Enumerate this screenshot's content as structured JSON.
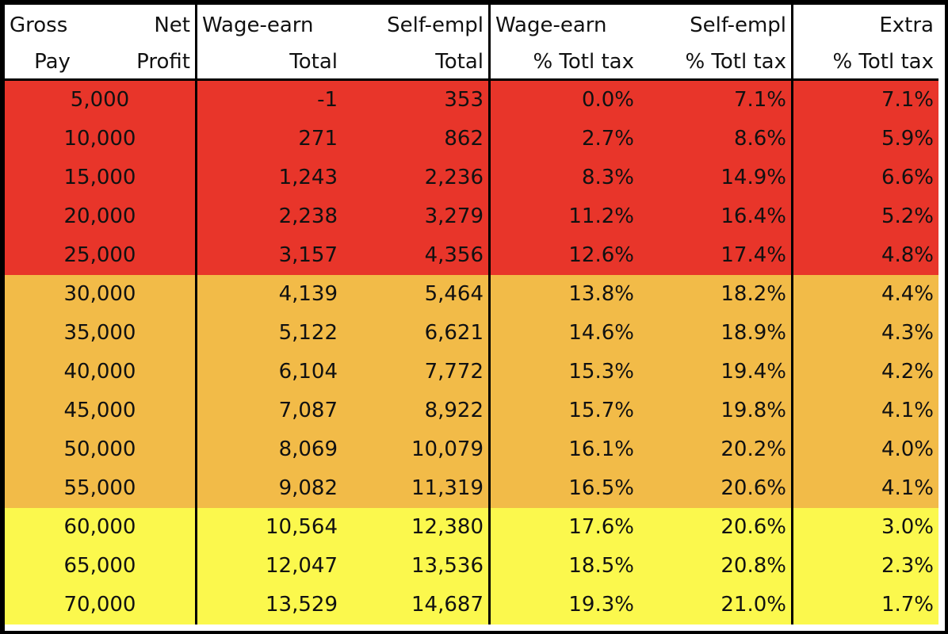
{
  "header": {
    "col1": [
      "Gross",
      "Pay"
    ],
    "col2": [
      "Net",
      "Profit"
    ],
    "col3": [
      "Wage-earn",
      "Total"
    ],
    "col4": [
      "Self-empl",
      "Total"
    ],
    "col5": [
      "Wage-earn",
      "% Totl tax"
    ],
    "col6": [
      "Self-empl",
      "% Totl tax"
    ],
    "col7": [
      "Extra",
      "% Totl tax"
    ]
  },
  "tier_colors": {
    "red": "#e8352a",
    "orange": "#f2bb48",
    "yellow": "#fbf84d"
  },
  "rows": [
    {
      "gross": "5,000",
      "wage_total": "-1",
      "self_total": "353",
      "wage_pct": "0.0%",
      "self_pct": "7.1%",
      "extra_pct": "7.1%",
      "tier": "red"
    },
    {
      "gross": "10,000",
      "wage_total": "271",
      "self_total": "862",
      "wage_pct": "2.7%",
      "self_pct": "8.6%",
      "extra_pct": "5.9%",
      "tier": "red"
    },
    {
      "gross": "15,000",
      "wage_total": "1,243",
      "self_total": "2,236",
      "wage_pct": "8.3%",
      "self_pct": "14.9%",
      "extra_pct": "6.6%",
      "tier": "red"
    },
    {
      "gross": "20,000",
      "wage_total": "2,238",
      "self_total": "3,279",
      "wage_pct": "11.2%",
      "self_pct": "16.4%",
      "extra_pct": "5.2%",
      "tier": "red"
    },
    {
      "gross": "25,000",
      "wage_total": "3,157",
      "self_total": "4,356",
      "wage_pct": "12.6%",
      "self_pct": "17.4%",
      "extra_pct": "4.8%",
      "tier": "red"
    },
    {
      "gross": "30,000",
      "wage_total": "4,139",
      "self_total": "5,464",
      "wage_pct": "13.8%",
      "self_pct": "18.2%",
      "extra_pct": "4.4%",
      "tier": "orange"
    },
    {
      "gross": "35,000",
      "wage_total": "5,122",
      "self_total": "6,621",
      "wage_pct": "14.6%",
      "self_pct": "18.9%",
      "extra_pct": "4.3%",
      "tier": "orange"
    },
    {
      "gross": "40,000",
      "wage_total": "6,104",
      "self_total": "7,772",
      "wage_pct": "15.3%",
      "self_pct": "19.4%",
      "extra_pct": "4.2%",
      "tier": "orange"
    },
    {
      "gross": "45,000",
      "wage_total": "7,087",
      "self_total": "8,922",
      "wage_pct": "15.7%",
      "self_pct": "19.8%",
      "extra_pct": "4.1%",
      "tier": "orange"
    },
    {
      "gross": "50,000",
      "wage_total": "8,069",
      "self_total": "10,079",
      "wage_pct": "16.1%",
      "self_pct": "20.2%",
      "extra_pct": "4.0%",
      "tier": "orange"
    },
    {
      "gross": "55,000",
      "wage_total": "9,082",
      "self_total": "11,319",
      "wage_pct": "16.5%",
      "self_pct": "20.6%",
      "extra_pct": "4.1%",
      "tier": "orange"
    },
    {
      "gross": "60,000",
      "wage_total": "10,564",
      "self_total": "12,380",
      "wage_pct": "17.6%",
      "self_pct": "20.6%",
      "extra_pct": "3.0%",
      "tier": "yellow"
    },
    {
      "gross": "65,000",
      "wage_total": "12,047",
      "self_total": "13,536",
      "wage_pct": "18.5%",
      "self_pct": "20.8%",
      "extra_pct": "2.3%",
      "tier": "yellow"
    },
    {
      "gross": "70,000",
      "wage_total": "13,529",
      "self_total": "14,687",
      "wage_pct": "19.3%",
      "self_pct": "21.0%",
      "extra_pct": "1.7%",
      "tier": "yellow"
    }
  ]
}
